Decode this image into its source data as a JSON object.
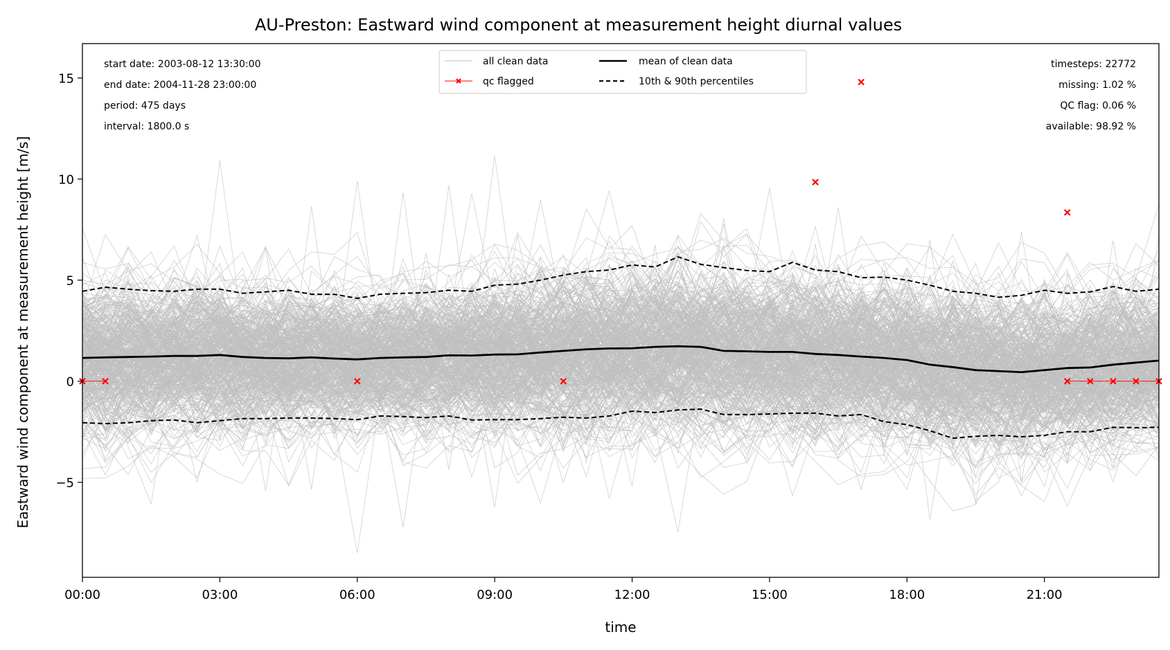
{
  "chart_data": {
    "type": "line",
    "title": "AU-Preston: Eastward wind component at measurement height diurnal values",
    "xlabel": "time",
    "ylabel": "Eastward wind component at measurement height [m/s]",
    "xlim_hours": [
      0,
      23.5
    ],
    "ylim": [
      -9.7,
      16.7
    ],
    "x_ticks": [
      "00:00",
      "03:00",
      "06:00",
      "09:00",
      "12:00",
      "15:00",
      "18:00",
      "21:00"
    ],
    "y_ticks": [
      -5,
      0,
      5,
      10,
      15
    ],
    "y_tick_labels": [
      "−5",
      "0",
      "5",
      "10",
      "15"
    ],
    "grid": false,
    "legend": {
      "placement": "top-center",
      "entries": [
        {
          "label": "all clean data",
          "color": "#bfbfbf",
          "style": "thin"
        },
        {
          "label": "qc flagged",
          "color": "#ff0000",
          "style": "marker-x"
        },
        {
          "label": "mean of clean data",
          "color": "#000000",
          "style": "thick"
        },
        {
          "label": "10th & 90th percentiles",
          "color": "#000000",
          "style": "dashed"
        }
      ]
    },
    "info_left": [
      "start date: 2003-08-12 13:30:00",
      "end date: 2004-11-28 23:00:00",
      "period: 475 days",
      "interval: 1800.0 s"
    ],
    "info_right": [
      "timesteps: 22772",
      "missing: 1.02 %",
      "QC flag: 0.06 %",
      "available: 98.92 %"
    ],
    "x_hours": [
      0,
      0.5,
      1,
      1.5,
      2,
      2.5,
      3,
      3.5,
      4,
      4.5,
      5,
      5.5,
      6,
      6.5,
      7,
      7.5,
      8,
      8.5,
      9,
      9.5,
      10,
      10.5,
      11,
      11.5,
      12,
      12.5,
      13,
      13.5,
      14,
      14.5,
      15,
      15.5,
      16,
      16.5,
      17,
      17.5,
      18,
      18.5,
      19,
      19.5,
      20,
      20.5,
      21,
      21.5,
      22,
      22.5,
      23,
      23.5
    ],
    "series": [
      {
        "name": "mean of clean data",
        "values": [
          1.15,
          1.18,
          1.2,
          1.22,
          1.25,
          1.25,
          1.3,
          1.2,
          1.15,
          1.13,
          1.18,
          1.12,
          1.08,
          1.15,
          1.18,
          1.2,
          1.28,
          1.27,
          1.32,
          1.33,
          1.42,
          1.5,
          1.58,
          1.62,
          1.63,
          1.7,
          1.73,
          1.7,
          1.5,
          1.48,
          1.45,
          1.45,
          1.35,
          1.3,
          1.22,
          1.15,
          1.05,
          0.82,
          0.7,
          0.55,
          0.5,
          0.45,
          0.55,
          0.65,
          0.68,
          0.82,
          0.92,
          1.02
        ]
      },
      {
        "name": "10th & 90th percentiles",
        "values": [
          4.45,
          4.65,
          4.55,
          4.48,
          4.45,
          4.55,
          4.55,
          4.35,
          4.42,
          4.5,
          4.3,
          4.3,
          4.1,
          4.3,
          4.35,
          4.38,
          4.5,
          4.45,
          4.75,
          4.8,
          5.0,
          5.25,
          5.42,
          5.5,
          5.75,
          5.65,
          6.15,
          5.78,
          5.62,
          5.48,
          5.42,
          5.88,
          5.5,
          5.42,
          5.12,
          5.15,
          5.0,
          4.75,
          4.45,
          4.35,
          4.15,
          4.25,
          4.5,
          4.35,
          4.42,
          4.68,
          4.45,
          4.55
        ]
      },
      {
        "name": "10th & 90th percentiles",
        "values": [
          -2.05,
          -2.1,
          -2.05,
          -1.95,
          -1.92,
          -2.05,
          -1.95,
          -1.85,
          -1.85,
          -1.82,
          -1.82,
          -1.85,
          -1.9,
          -1.72,
          -1.75,
          -1.8,
          -1.72,
          -1.92,
          -1.9,
          -1.9,
          -1.85,
          -1.78,
          -1.82,
          -1.72,
          -1.48,
          -1.55,
          -1.42,
          -1.38,
          -1.65,
          -1.65,
          -1.62,
          -1.58,
          -1.58,
          -1.72,
          -1.65,
          -2.0,
          -2.15,
          -2.45,
          -2.82,
          -2.72,
          -2.68,
          -2.75,
          -2.68,
          -2.5,
          -2.5,
          -2.28,
          -2.3,
          -2.28
        ]
      }
    ],
    "qc_flagged": [
      {
        "x": 0.0,
        "y": 0
      },
      {
        "x": 0.5,
        "y": 0
      },
      {
        "x": 6.0,
        "y": 0
      },
      {
        "x": 10.5,
        "y": 0
      },
      {
        "x": 16.0,
        "y": 9.85
      },
      {
        "x": 17.0,
        "y": 14.8
      },
      {
        "x": 21.5,
        "y": 8.35
      },
      {
        "x": 21.5,
        "y": 0
      },
      {
        "x": 22.0,
        "y": 0
      },
      {
        "x": 22.5,
        "y": 0
      },
      {
        "x": 23.0,
        "y": 0
      },
      {
        "x": 23.5,
        "y": 0
      }
    ],
    "qc_connected": [
      [
        0.0,
        0.5
      ],
      [
        21.5,
        22.0,
        22.5,
        23.0,
        23.5
      ]
    ]
  }
}
